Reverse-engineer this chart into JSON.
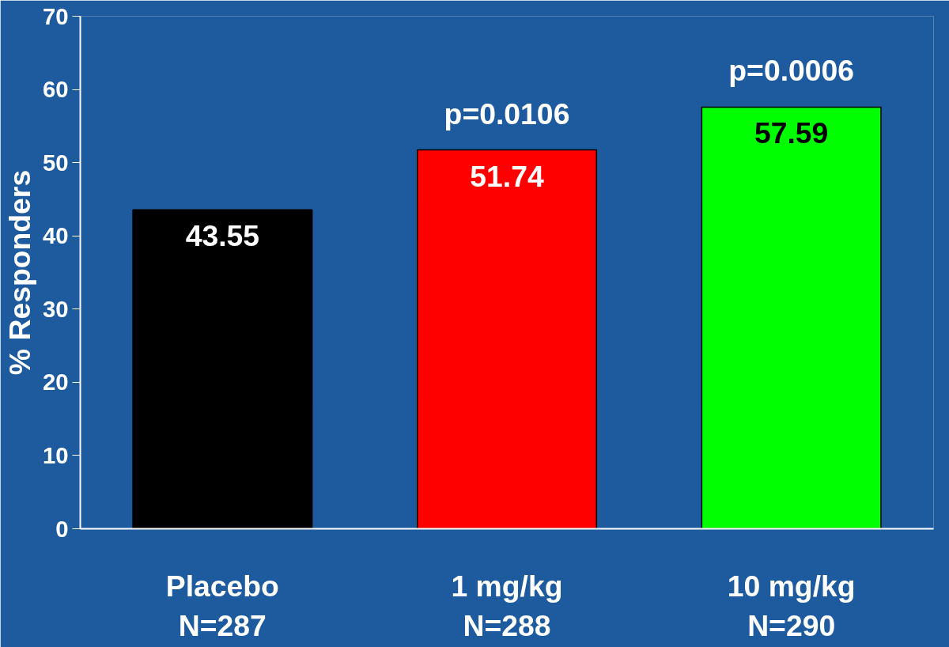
{
  "chart_data": {
    "type": "bar",
    "ylabel": "% Responders",
    "categories": [
      "Placebo\nN=287",
      "1 mg/kg\nN=288",
      "10 mg/kg\nN=290"
    ],
    "values": [
      43.55,
      51.74,
      57.59
    ],
    "colors": [
      "#000000",
      "#ff0000",
      "#00ff00"
    ],
    "ylim": [
      0,
      70
    ],
    "yticks": [
      0,
      10,
      20,
      30,
      40,
      50,
      60,
      70
    ],
    "data_labels": true,
    "grid": false,
    "annotations": [
      {
        "text": "p=0.0106",
        "x": "1 mg/kg\nN=288",
        "y": 51.74
      },
      {
        "text": "p=0.0006",
        "x": "10 mg/kg\nN=290",
        "y": 57.59
      }
    ]
  }
}
